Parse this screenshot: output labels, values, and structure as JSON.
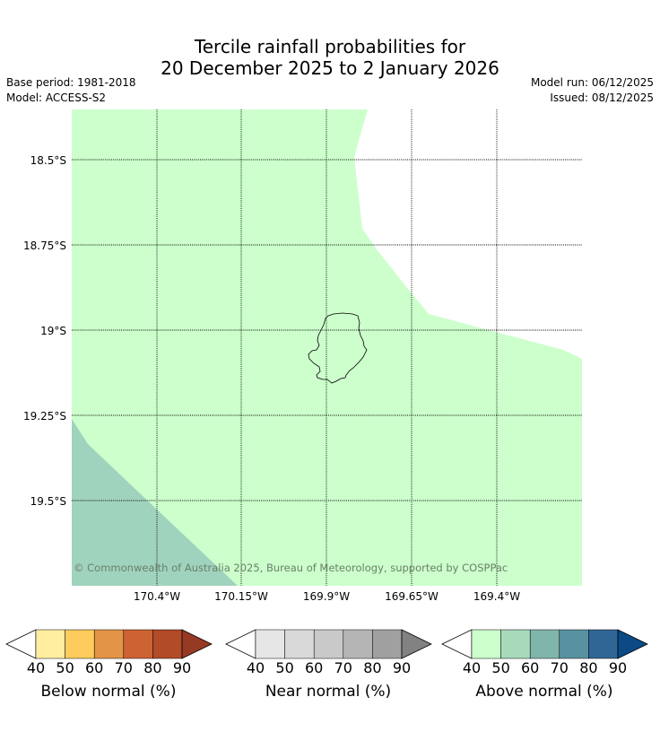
{
  "title": {
    "line1": "Tercile rainfall probabilities for",
    "line2": "20 December 2025 to 2 January 2026"
  },
  "meta": {
    "base_period": "Base period: 1981-2018",
    "model": "Model: ACCESS-S2",
    "model_run": "Model run: 06/12/2025",
    "issued": "Issued: 08/12/2025"
  },
  "map": {
    "latitude_labels": [
      "18.5°S",
      "18.75°S",
      "19°S",
      "19.25°S",
      "19.5°S"
    ],
    "longitude_labels": [
      "170.4°W",
      "170.15°W",
      "169.9°W",
      "169.65°W",
      "169.4°W"
    ],
    "copyright": "© Commonwealth of Australia 2025, Bureau of Meteorology, supported by COSPPac",
    "colors": {
      "above_40_50": "#ccffcc",
      "above_50_60": "#a0d3bd",
      "land_outline": "#000000"
    }
  },
  "legends": [
    {
      "label": "Below normal (%)",
      "ticks": [
        "40",
        "50",
        "60",
        "70",
        "80",
        "90"
      ],
      "colors": [
        "#ffffff",
        "#ffeda0",
        "#fecc5c",
        "#e39446",
        "#cd6233",
        "#b14b28",
        "#973a24"
      ]
    },
    {
      "label": "Near normal (%)",
      "ticks": [
        "40",
        "50",
        "60",
        "70",
        "80",
        "90"
      ],
      "colors": [
        "#ffffff",
        "#e6e6e6",
        "#d9d9d9",
        "#c9c9c9",
        "#b5b5b5",
        "#a0a0a0",
        "#828282"
      ]
    },
    {
      "label": "Above normal (%)",
      "ticks": [
        "40",
        "50",
        "60",
        "70",
        "80",
        "90"
      ],
      "colors": [
        "#ffffff",
        "#ccffcc",
        "#a8d9bb",
        "#80b5ab",
        "#5892a0",
        "#306695",
        "#0c4a85"
      ]
    }
  ]
}
